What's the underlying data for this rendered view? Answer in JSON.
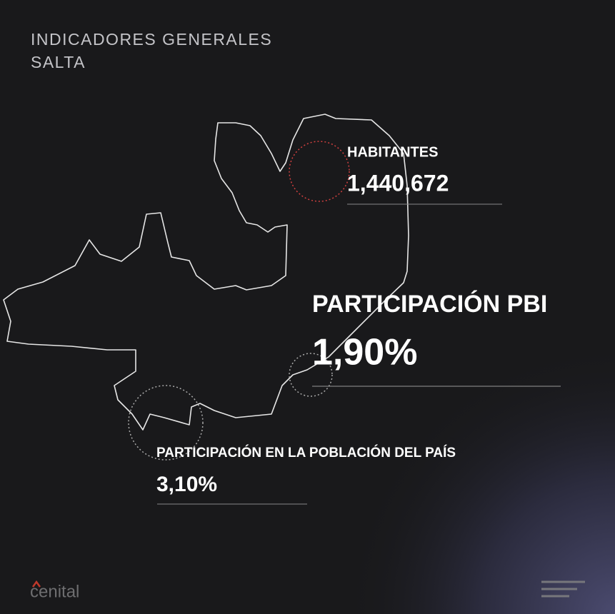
{
  "header": {
    "title": "INDICADORES GENERALES",
    "subtitle": "SALTA"
  },
  "indicators": [
    {
      "label": "HABITANTES",
      "value": "1,440,672"
    },
    {
      "label": "PARTICIPACIÓN PBI",
      "value": "1,90%"
    },
    {
      "label": "PARTICIPACIÓN EN LA POBLACIÓN DEL PAÍS",
      "value": "3,10%"
    }
  ],
  "brand": "cenital"
}
